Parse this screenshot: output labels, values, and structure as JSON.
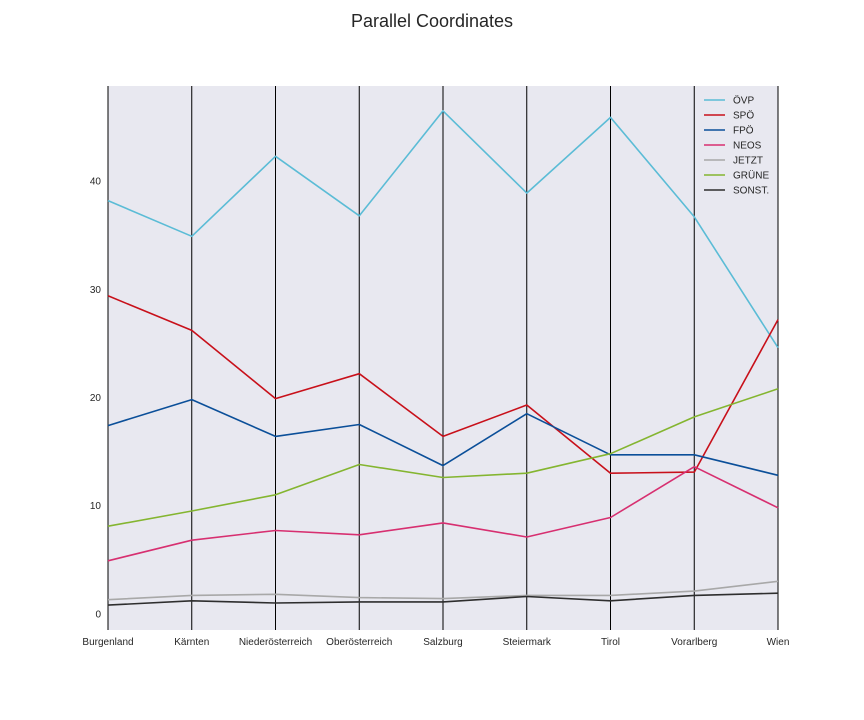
{
  "chart_data": {
    "type": "line",
    "subtype": "parallel-coordinates",
    "title": "Parallel Coordinates",
    "xlabel": "",
    "ylabel": "",
    "categories": [
      "Burgenland",
      "Kärnten",
      "Niederösterreich",
      "Oberösterreich",
      "Salzburg",
      "Steiermark",
      "Tirol",
      "Vorarlberg",
      "Wien"
    ],
    "ylim": [
      -1.5,
      48.8
    ],
    "yticks": [
      0,
      10,
      20,
      30,
      40
    ],
    "grid": false,
    "vertical_axis_lines": true,
    "legend_position": "top-right",
    "plot_background": "#e8e8f0",
    "series": [
      {
        "name": "ÖVP",
        "color": "#5bbcd6",
        "values": [
          38.2,
          34.9,
          42.3,
          36.8,
          46.5,
          38.9,
          45.9,
          36.7,
          24.6
        ]
      },
      {
        "name": "SPÖ",
        "color": "#c8101a",
        "values": [
          29.4,
          26.2,
          19.9,
          22.2,
          16.4,
          19.3,
          13.0,
          13.1,
          27.2
        ]
      },
      {
        "name": "FPÖ",
        "color": "#0b4f99",
        "values": [
          17.4,
          19.8,
          16.4,
          17.5,
          13.7,
          18.5,
          14.7,
          14.7,
          12.8
        ]
      },
      {
        "name": "NEOS",
        "color": "#d72f70",
        "values": [
          4.9,
          6.8,
          7.7,
          7.3,
          8.4,
          7.1,
          8.9,
          13.6,
          9.8
        ]
      },
      {
        "name": "JETZT",
        "color": "#a8a8a8",
        "values": [
          1.3,
          1.7,
          1.8,
          1.5,
          1.4,
          1.7,
          1.7,
          2.1,
          3.0
        ]
      },
      {
        "name": "GRÜNE",
        "color": "#84b530",
        "values": [
          8.1,
          9.5,
          11.0,
          13.8,
          12.6,
          13.0,
          14.8,
          18.2,
          20.8
        ]
      },
      {
        "name": "SONST.",
        "color": "#2e2e2e",
        "values": [
          0.8,
          1.2,
          1.0,
          1.1,
          1.1,
          1.6,
          1.2,
          1.7,
          1.9
        ]
      }
    ]
  }
}
